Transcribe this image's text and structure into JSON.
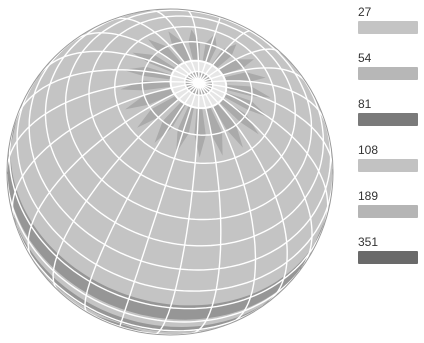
{
  "globe": {
    "graticule_color": "#ffffff",
    "base_color": "#c4c4c4",
    "band_color": "#8e8e8e",
    "pole_color": "#aaaaaa",
    "highlight_color": "#e6e6e6"
  },
  "legend": {
    "items": [
      {
        "label": "27",
        "color": "#c4c4c4"
      },
      {
        "label": "54",
        "color": "#b7b7b7"
      },
      {
        "label": "81",
        "color": "#7a7a7a"
      },
      {
        "label": "108",
        "color": "#c2c2c2"
      },
      {
        "label": "189",
        "color": "#b5b5b5"
      },
      {
        "label": "351",
        "color": "#6a6a6a"
      }
    ]
  }
}
